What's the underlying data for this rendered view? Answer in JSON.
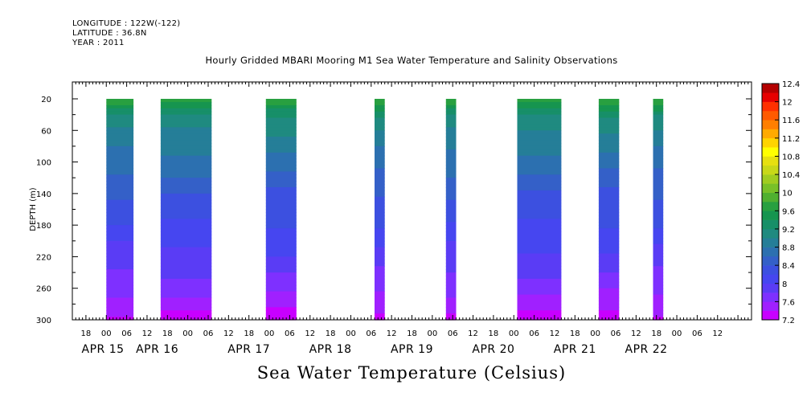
{
  "header": {
    "longitude": "LONGITUDE : 122W(-122)",
    "latitude": "LATITUDE : 36.8N",
    "year": "YEAR : 2011"
  },
  "chart_data": {
    "type": "heatmap",
    "title": "Hourly Gridded MBARI Mooring M1 Sea Water Temperature and Salinity Observations",
    "xlabel": "Sea Water Temperature (Celsius)",
    "ylabel": "DEPTH (m)",
    "x_axis": {
      "unit": "hours since APR 15 2011 00:00",
      "range_hours": [
        -10,
        190
      ],
      "hour_tick_labels": [
        "18",
        "00",
        "06",
        "12",
        "18",
        "00",
        "06",
        "12",
        "18",
        "00",
        "06",
        "12",
        "18",
        "00",
        "06",
        "12",
        "18",
        "00",
        "06",
        "12",
        "18",
        "00",
        "06",
        "12",
        "18",
        "00",
        "06",
        "12",
        "18",
        "00",
        "06",
        "12"
      ],
      "hour_tick_positions": [
        -6,
        0,
        6,
        12,
        18,
        24,
        30,
        36,
        42,
        48,
        54,
        60,
        66,
        72,
        78,
        84,
        90,
        96,
        102,
        108,
        114,
        120,
        126,
        132,
        138,
        144,
        150,
        156,
        162,
        168,
        174,
        180
      ],
      "date_labels": [
        "APR 15",
        "APR 16",
        "APR 17",
        "APR 18",
        "APR 19",
        "APR 20",
        "APR 21",
        "APR 22"
      ],
      "date_label_positions": [
        -1,
        15,
        42,
        66,
        90,
        114,
        138,
        159
      ]
    },
    "y_axis": {
      "range": [
        300,
        20
      ],
      "inverted": true,
      "ticks": [
        20,
        60,
        100,
        140,
        180,
        220,
        260,
        300
      ]
    },
    "colorbar": {
      "levels": [
        7.2,
        7.4,
        7.6,
        7.8,
        8.0,
        8.2,
        8.4,
        8.6,
        8.8,
        9.0,
        9.2,
        9.4,
        9.6,
        9.8,
        10.0,
        10.2,
        10.4,
        10.6,
        10.8,
        11.0,
        11.2,
        11.4,
        11.6,
        11.8,
        12.0,
        12.2,
        12.4
      ],
      "labels": [
        "7.2",
        "7.6",
        "8",
        "8.4",
        "8.8",
        "9.2",
        "9.6",
        "10",
        "10.4",
        "10.8",
        "11.2",
        "11.6",
        "12",
        "12.4"
      ],
      "colors": [
        "#c800ff",
        "#a020ff",
        "#7e30ff",
        "#5a3cf5",
        "#4646f0",
        "#3c50e0",
        "#3460c8",
        "#2c70b0",
        "#257e98",
        "#1f8a80",
        "#178f68",
        "#16954f",
        "#28a040",
        "#50b030",
        "#78c028",
        "#a0cc20",
        "#c8d818",
        "#e6e010",
        "#ffff00",
        "#ffd400",
        "#ffaa00",
        "#ff7f00",
        "#ff5a00",
        "#ff3000",
        "#e60000",
        "#b40000"
      ]
    },
    "data_coverage_hours": [
      [
        0,
        8
      ],
      [
        16,
        31
      ],
      [
        47,
        56
      ],
      [
        79,
        82
      ],
      [
        100,
        103
      ],
      [
        121,
        134
      ],
      [
        145,
        151
      ],
      [
        161,
        164
      ]
    ],
    "profile": {
      "depth": [
        20,
        40,
        60,
        80,
        100,
        120,
        140,
        160,
        180,
        200,
        220,
        240,
        260,
        280,
        300
      ],
      "temperature": [
        9.8,
        9.2,
        9.0,
        8.85,
        8.7,
        8.55,
        8.4,
        8.3,
        8.2,
        8.05,
        7.95,
        7.8,
        7.65,
        7.5,
        7.3
      ]
    }
  }
}
